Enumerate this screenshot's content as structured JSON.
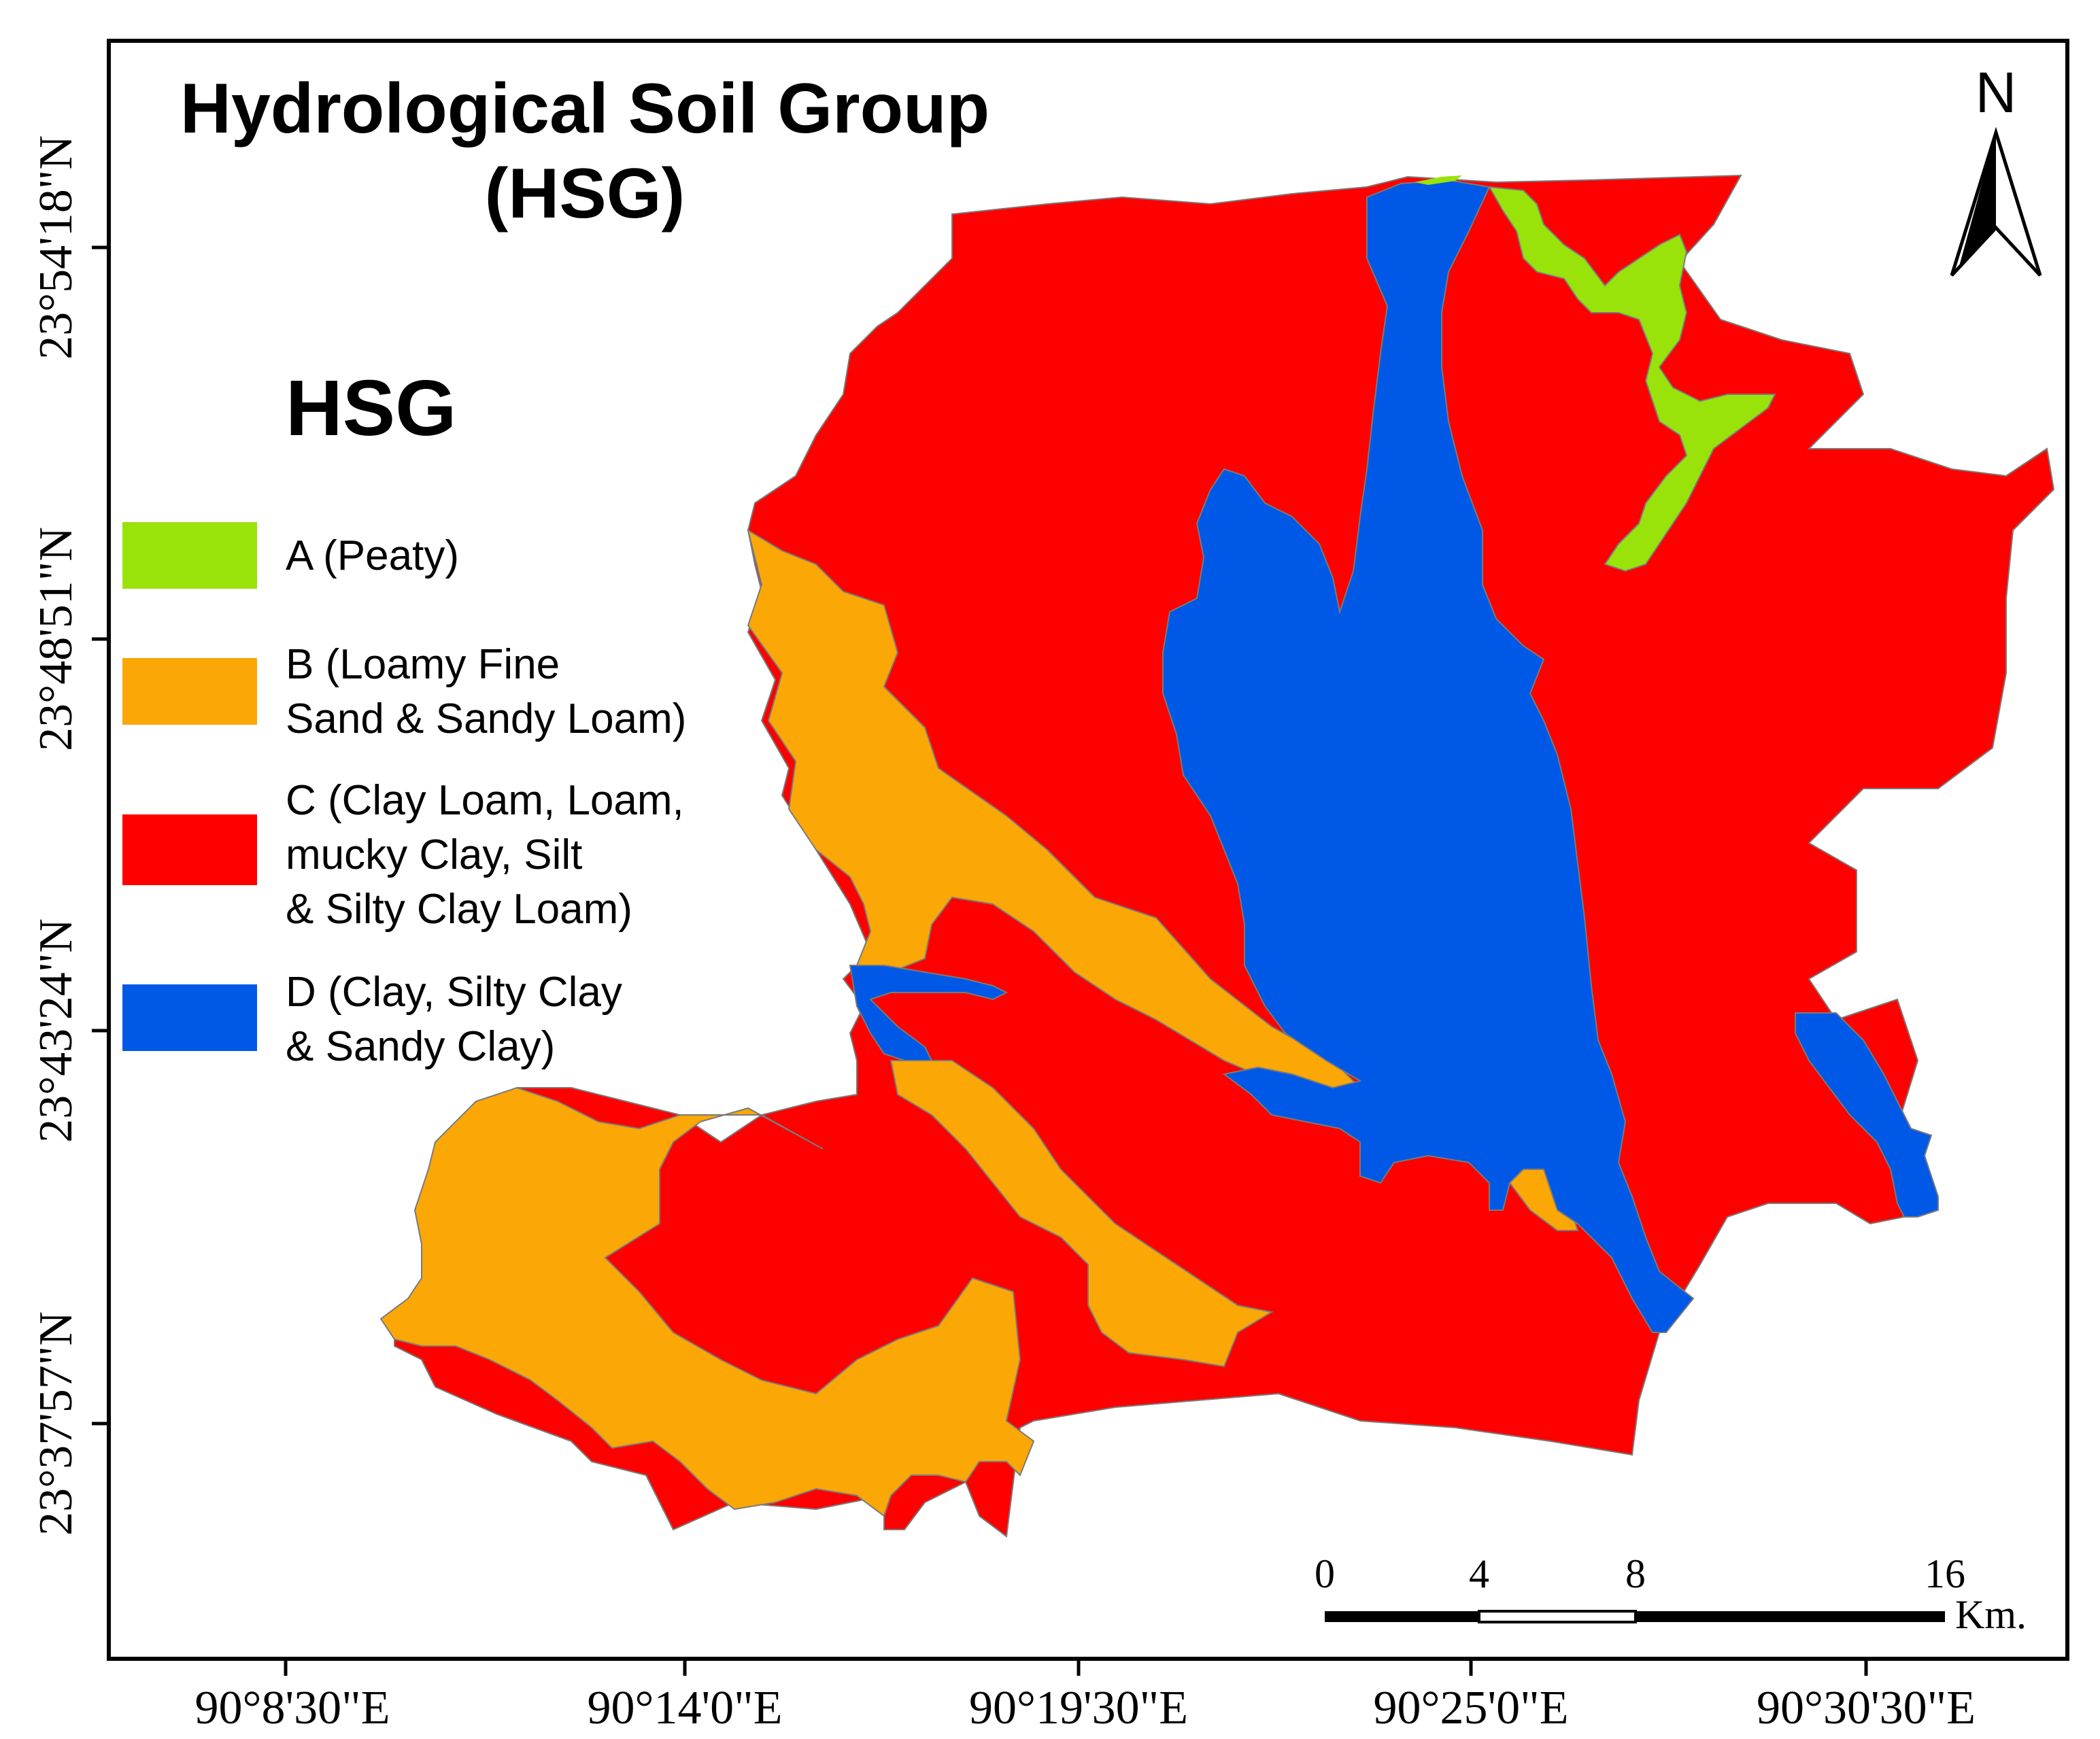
{
  "map": {
    "title_line1": "Hydrological Soil Group",
    "title_line2": "(HSG)",
    "north_label": "N"
  },
  "legend": {
    "heading": "HSG",
    "items": [
      {
        "lines": [
          "A (Peaty)"
        ],
        "color": "#99e30a"
      },
      {
        "lines": [
          "B (Loamy Fine",
          "Sand & Sandy Loam)"
        ],
        "color": "#fba706"
      },
      {
        "lines": [
          "C (Clay Loam, Loam,",
          "mucky Clay, Silt",
          "& Silty Clay Loam)"
        ],
        "color": "#fe0000"
      },
      {
        "lines": [
          "D (Clay, Silty Clay",
          "& Sandy Clay)"
        ],
        "color": "#0059e6"
      }
    ]
  },
  "axes": {
    "longitude_labels": [
      "90°8'30\"E",
      "90°14'0\"E",
      "90°19'30\"E",
      "90°25'0\"E",
      "90°30'30\"E"
    ],
    "latitude_labels": [
      "23°54'18\"N",
      "23°48'51\"N",
      "23°43'24\"N",
      "23°37'57\"N"
    ]
  },
  "scale_bar": {
    "ticks": [
      "0",
      "4",
      "8",
      "16"
    ],
    "unit": "Km."
  },
  "colors": {
    "group_a": "#99e30a",
    "group_b": "#fba706",
    "group_c": "#fe0000",
    "group_d": "#0059e6",
    "frame": "#000000"
  }
}
